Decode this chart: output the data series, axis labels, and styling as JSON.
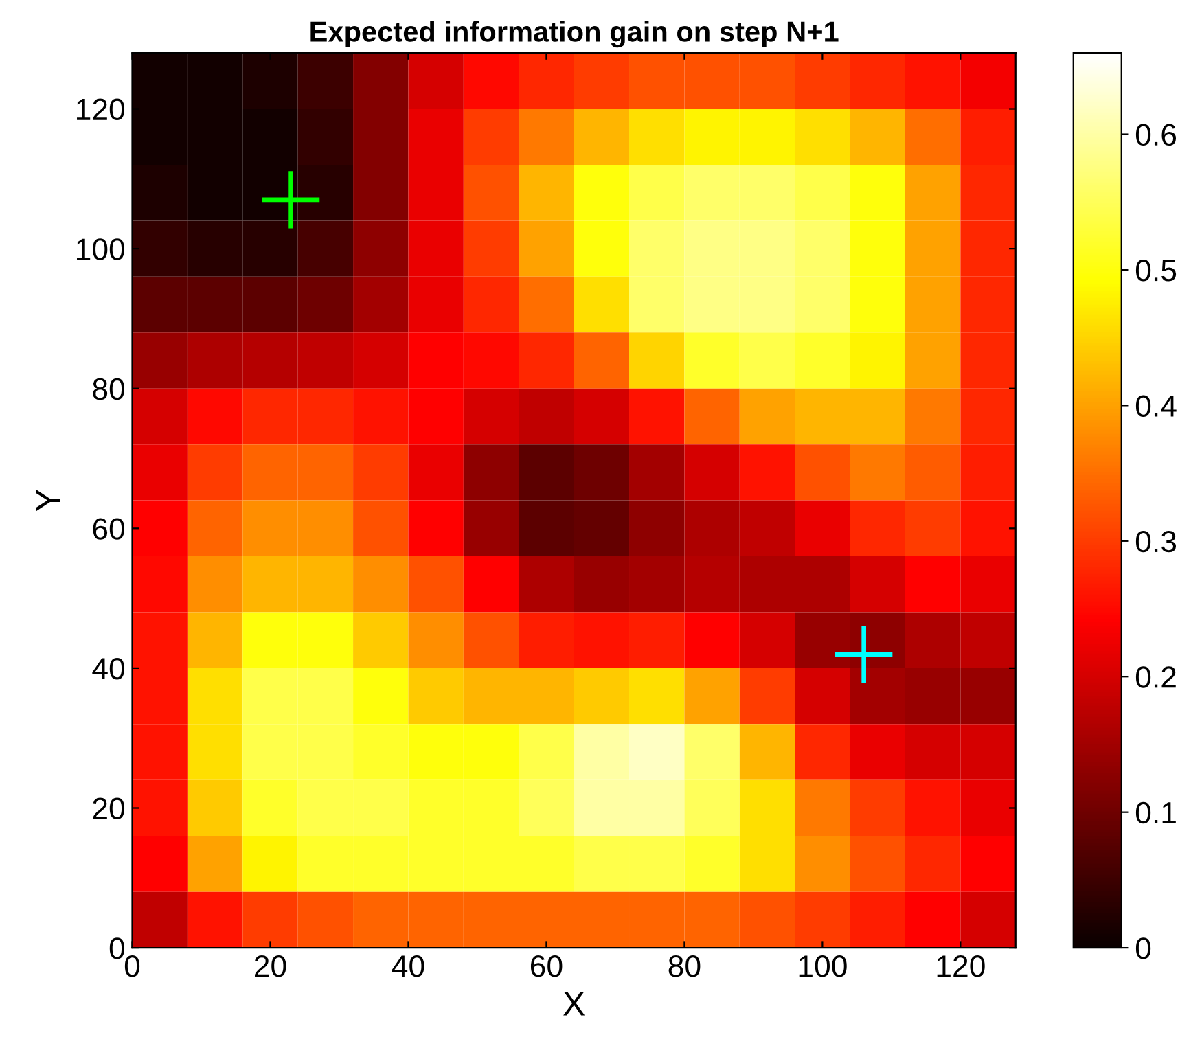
{
  "chart_data": {
    "type": "heatmap",
    "title": "Expected information gain on step N+1",
    "xlabel": "X",
    "ylabel": "Y",
    "xlim": [
      0,
      128
    ],
    "ylim": [
      0,
      128
    ],
    "xticks": [
      0,
      20,
      40,
      60,
      80,
      100,
      120
    ],
    "yticks": [
      0,
      20,
      40,
      60,
      80,
      100,
      120
    ],
    "clim": [
      0,
      0.66
    ],
    "cticks": [
      0,
      0.1,
      0.2,
      0.3,
      0.4,
      0.5,
      0.6
    ],
    "x": [
      4,
      12,
      20,
      28,
      36,
      44,
      52,
      60,
      68,
      76,
      84,
      92,
      100,
      108,
      116,
      124
    ],
    "y": [
      124,
      116,
      108,
      100,
      92,
      84,
      76,
      68,
      60,
      52,
      44,
      36,
      28,
      20,
      12,
      4
    ],
    "cells": [
      [
        0.01,
        0.01,
        0.02,
        0.05,
        0.12,
        0.2,
        0.25,
        0.28,
        0.3,
        0.32,
        0.32,
        0.32,
        0.3,
        0.28,
        0.26,
        0.23
      ],
      [
        0.01,
        0.01,
        0.01,
        0.04,
        0.12,
        0.22,
        0.3,
        0.36,
        0.42,
        0.46,
        0.48,
        0.48,
        0.46,
        0.42,
        0.35,
        0.27
      ],
      [
        0.02,
        0.01,
        0.01,
        0.03,
        0.12,
        0.22,
        0.32,
        0.42,
        0.5,
        0.54,
        0.56,
        0.56,
        0.54,
        0.5,
        0.4,
        0.28
      ],
      [
        0.04,
        0.03,
        0.03,
        0.06,
        0.13,
        0.22,
        0.3,
        0.4,
        0.5,
        0.56,
        0.58,
        0.58,
        0.56,
        0.5,
        0.4,
        0.28
      ],
      [
        0.08,
        0.08,
        0.08,
        0.1,
        0.15,
        0.22,
        0.28,
        0.35,
        0.46,
        0.56,
        0.58,
        0.58,
        0.56,
        0.5,
        0.4,
        0.28
      ],
      [
        0.14,
        0.16,
        0.17,
        0.18,
        0.2,
        0.24,
        0.25,
        0.28,
        0.34,
        0.45,
        0.52,
        0.54,
        0.52,
        0.48,
        0.4,
        0.28
      ],
      [
        0.2,
        0.25,
        0.28,
        0.28,
        0.26,
        0.24,
        0.2,
        0.18,
        0.2,
        0.26,
        0.34,
        0.4,
        0.42,
        0.42,
        0.36,
        0.28
      ],
      [
        0.22,
        0.3,
        0.34,
        0.34,
        0.3,
        0.22,
        0.13,
        0.08,
        0.1,
        0.15,
        0.2,
        0.26,
        0.32,
        0.36,
        0.33,
        0.27
      ],
      [
        0.24,
        0.34,
        0.38,
        0.38,
        0.32,
        0.24,
        0.14,
        0.08,
        0.09,
        0.13,
        0.16,
        0.18,
        0.22,
        0.28,
        0.3,
        0.26
      ],
      [
        0.25,
        0.38,
        0.42,
        0.42,
        0.38,
        0.32,
        0.24,
        0.16,
        0.14,
        0.15,
        0.17,
        0.16,
        0.16,
        0.2,
        0.24,
        0.22
      ],
      [
        0.26,
        0.42,
        0.5,
        0.5,
        0.44,
        0.38,
        0.32,
        0.27,
        0.26,
        0.27,
        0.24,
        0.2,
        0.14,
        0.13,
        0.16,
        0.18
      ],
      [
        0.26,
        0.46,
        0.54,
        0.54,
        0.5,
        0.44,
        0.42,
        0.42,
        0.44,
        0.46,
        0.4,
        0.3,
        0.2,
        0.15,
        0.14,
        0.14
      ],
      [
        0.26,
        0.46,
        0.54,
        0.54,
        0.52,
        0.5,
        0.5,
        0.54,
        0.6,
        0.62,
        0.56,
        0.42,
        0.28,
        0.22,
        0.2,
        0.2
      ],
      [
        0.26,
        0.44,
        0.52,
        0.54,
        0.54,
        0.52,
        0.52,
        0.55,
        0.6,
        0.6,
        0.55,
        0.46,
        0.36,
        0.3,
        0.26,
        0.22
      ],
      [
        0.24,
        0.4,
        0.48,
        0.52,
        0.52,
        0.52,
        0.52,
        0.52,
        0.54,
        0.54,
        0.52,
        0.46,
        0.38,
        0.32,
        0.28,
        0.24
      ],
      [
        0.18,
        0.26,
        0.3,
        0.32,
        0.34,
        0.34,
        0.34,
        0.34,
        0.34,
        0.34,
        0.34,
        0.32,
        0.3,
        0.27,
        0.24,
        0.2
      ]
    ],
    "series": [
      {
        "type": "scatter",
        "x": [
          23
        ],
        "values": [
          107
        ],
        "color": "#00ff00"
      },
      {
        "type": "scatter",
        "x": [
          106
        ],
        "values": [
          42
        ],
        "color": "#00ffff"
      }
    ],
    "marker": "cross"
  }
}
